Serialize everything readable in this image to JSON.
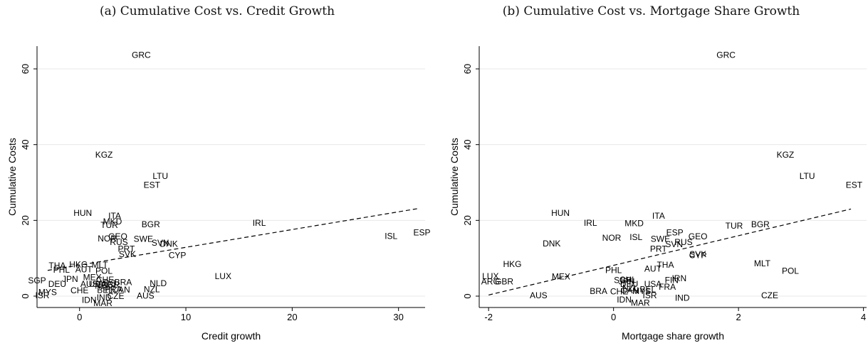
{
  "panels": {
    "a": {
      "title": "(a) Cumulative Cost vs. Credit Growth"
    },
    "b": {
      "title": "(b) Cumulative Cost vs. Mortgage Share Growth"
    }
  },
  "chart_data": [
    {
      "type": "scatter",
      "title": "(a) Cumulative Cost vs. Credit Growth",
      "xlabel": "Credit growth",
      "ylabel": "Cumulative Costs",
      "xlim": [
        -4,
        32.5
      ],
      "ylim": [
        -3,
        66
      ],
      "xticks": [
        0,
        10,
        20,
        30
      ],
      "yticks": [
        0,
        20,
        40,
        60
      ],
      "grid": true,
      "fit_line": [
        [
          -3,
          6.8
        ],
        [
          32,
          23.2
        ]
      ],
      "points": [
        {
          "label": "GRC",
          "x": 5.8,
          "y": 63.5
        },
        {
          "label": "KGZ",
          "x": 2.3,
          "y": 37.2
        },
        {
          "label": "LTU",
          "x": 7.6,
          "y": 31.5
        },
        {
          "label": "EST",
          "x": 6.8,
          "y": 29.2
        },
        {
          "label": "HUN",
          "x": 0.3,
          "y": 21.8
        },
        {
          "label": "ITA",
          "x": 3.3,
          "y": 21.0
        },
        {
          "label": "MKD",
          "x": 3.1,
          "y": 19.5
        },
        {
          "label": "TUR",
          "x": 2.8,
          "y": 18.6
        },
        {
          "label": "BGR",
          "x": 6.7,
          "y": 18.8
        },
        {
          "label": "IRL",
          "x": 16.9,
          "y": 19.2
        },
        {
          "label": "GEO",
          "x": 3.6,
          "y": 15.6
        },
        {
          "label": "NOR",
          "x": 2.6,
          "y": 15.0
        },
        {
          "label": "SWE",
          "x": 6.0,
          "y": 14.9
        },
        {
          "label": "RUS",
          "x": 3.7,
          "y": 14.1
        },
        {
          "label": "SVN",
          "x": 7.6,
          "y": 13.9
        },
        {
          "label": "DNK",
          "x": 8.4,
          "y": 13.6
        },
        {
          "label": "PRT",
          "x": 4.4,
          "y": 12.3
        },
        {
          "label": "SVK",
          "x": 4.5,
          "y": 10.9
        },
        {
          "label": "CYP",
          "x": 9.2,
          "y": 10.6
        },
        {
          "label": "ISL",
          "x": 29.3,
          "y": 15.7
        },
        {
          "label": "ESP",
          "x": 32.2,
          "y": 16.6
        },
        {
          "label": "THA",
          "x": -2.1,
          "y": 7.9
        },
        {
          "label": "HKG",
          "x": -0.1,
          "y": 8.2
        },
        {
          "label": "MLT",
          "x": 1.9,
          "y": 8.1
        },
        {
          "label": "PHL",
          "x": -1.7,
          "y": 6.8
        },
        {
          "label": "AUT",
          "x": 0.4,
          "y": 6.9
        },
        {
          "label": "POL",
          "x": 2.3,
          "y": 6.5
        },
        {
          "label": "SGP",
          "x": -4.0,
          "y": 4.0
        },
        {
          "label": "JPN",
          "x": -0.9,
          "y": 4.3
        },
        {
          "label": "MEX",
          "x": 1.2,
          "y": 4.8
        },
        {
          "label": "CHE",
          "x": 2.4,
          "y": 4.2
        },
        {
          "label": "DEU",
          "x": -2.1,
          "y": 3.0
        },
        {
          "label": "AUS",
          "x": 0.9,
          "y": 3.0
        },
        {
          "label": "USA",
          "x": 1.7,
          "y": 3.0
        },
        {
          "label": "ARG",
          "x": 2.6,
          "y": 3.2
        },
        {
          "label": "BRA",
          "x": 4.1,
          "y": 3.5
        },
        {
          "label": "NZL",
          "x": 2.2,
          "y": 2.6
        },
        {
          "label": "GBR",
          "x": 2.9,
          "y": 2.8
        },
        {
          "label": "LUX",
          "x": 13.5,
          "y": 5.1
        },
        {
          "label": "NLD",
          "x": 7.4,
          "y": 3.2
        },
        {
          "label": "MYS",
          "x": -3.0,
          "y": 0.9
        },
        {
          "label": "CHE",
          "x": 0.0,
          "y": 1.3
        },
        {
          "label": "BEL",
          "x": 2.4,
          "y": 1.4
        },
        {
          "label": "FRA",
          "x": 3.2,
          "y": 1.6
        },
        {
          "label": "CAN",
          "x": 3.9,
          "y": 1.5
        },
        {
          "label": "NZL",
          "x": 6.8,
          "y": 1.6
        },
        {
          "label": "ISR",
          "x": -3.5,
          "y": 0.0
        },
        {
          "label": "IND",
          "x": 2.3,
          "y": -0.5
        },
        {
          "label": "CZE",
          "x": 3.4,
          "y": -0.2
        },
        {
          "label": "AUS",
          "x": 6.2,
          "y": -0.1
        },
        {
          "label": "IDN",
          "x": 0.9,
          "y": -1.2
        },
        {
          "label": "MAR",
          "x": 2.2,
          "y": -2.0
        }
      ]
    },
    {
      "type": "scatter",
      "title": "(b) Cumulative Cost vs. Mortgage Share Growth",
      "xlabel": "Mortgage share growth",
      "ylabel": "Cumulative Costs",
      "xlim": [
        -2.15,
        4.05
      ],
      "ylim": [
        -3,
        66
      ],
      "xticks": [
        -2,
        0,
        2,
        4
      ],
      "yticks": [
        0,
        20,
        40,
        60
      ],
      "grid": true,
      "fit_line": [
        [
          -2.0,
          0.3
        ],
        [
          3.8,
          23.0
        ]
      ],
      "points": [
        {
          "label": "GRC",
          "x": 1.8,
          "y": 63.5
        },
        {
          "label": "KGZ",
          "x": 2.75,
          "y": 37.2
        },
        {
          "label": "LTU",
          "x": 3.1,
          "y": 31.5
        },
        {
          "label": "EST",
          "x": 3.85,
          "y": 29.2
        },
        {
          "label": "HUN",
          "x": -0.85,
          "y": 21.8
        },
        {
          "label": "ITA",
          "x": 0.72,
          "y": 21.0
        },
        {
          "label": "IRL",
          "x": -0.37,
          "y": 19.2
        },
        {
          "label": "MKD",
          "x": 0.33,
          "y": 19.1
        },
        {
          "label": "TUR",
          "x": 1.93,
          "y": 18.4
        },
        {
          "label": "BGR",
          "x": 2.35,
          "y": 18.8
        },
        {
          "label": "ESP",
          "x": 0.98,
          "y": 16.6
        },
        {
          "label": "GEO",
          "x": 1.35,
          "y": 15.6
        },
        {
          "label": "NOR",
          "x": -0.03,
          "y": 15.2
        },
        {
          "label": "ISL",
          "x": 0.36,
          "y": 15.4
        },
        {
          "label": "SWE",
          "x": 0.75,
          "y": 14.9
        },
        {
          "label": "RUS",
          "x": 1.12,
          "y": 14.1
        },
        {
          "label": "DNK",
          "x": -0.99,
          "y": 13.7
        },
        {
          "label": "SVN",
          "x": 0.97,
          "y": 13.5
        },
        {
          "label": "PRT",
          "x": 0.72,
          "y": 12.3
        },
        {
          "label": "SVK",
          "x": 1.35,
          "y": 10.9
        },
        {
          "label": "CYP",
          "x": 1.35,
          "y": 10.6
        },
        {
          "label": "HKG",
          "x": -1.62,
          "y": 8.3
        },
        {
          "label": "THA",
          "x": 0.83,
          "y": 8.1
        },
        {
          "label": "MLT",
          "x": 2.38,
          "y": 8.5
        },
        {
          "label": "AUT",
          "x": 0.63,
          "y": 7.1
        },
        {
          "label": "POL",
          "x": 2.83,
          "y": 6.5
        },
        {
          "label": "PHL",
          "x": 0.0,
          "y": 6.7
        },
        {
          "label": "MEX",
          "x": -0.84,
          "y": 5.0
        },
        {
          "label": "LUX",
          "x": -1.97,
          "y": 5.1
        },
        {
          "label": "ARG",
          "x": -1.97,
          "y": 3.7
        },
        {
          "label": "GBR",
          "x": -1.75,
          "y": 3.7
        },
        {
          "label": "SGP",
          "x": 0.15,
          "y": 4.1
        },
        {
          "label": "CHL",
          "x": 0.23,
          "y": 4.2
        },
        {
          "label": "JPN",
          "x": 0.21,
          "y": 3.7
        },
        {
          "label": "DEU",
          "x": 0.25,
          "y": 3.0
        },
        {
          "label": "USA",
          "x": 0.63,
          "y": 3.0
        },
        {
          "label": "FIN",
          "x": 0.93,
          "y": 4.1
        },
        {
          "label": "IRN",
          "x": 1.05,
          "y": 4.5
        },
        {
          "label": "FRA",
          "x": 0.86,
          "y": 2.3
        },
        {
          "label": "NZL",
          "x": 0.27,
          "y": 2.0
        },
        {
          "label": "BRA",
          "x": -0.24,
          "y": 1.2
        },
        {
          "label": "CHE",
          "x": 0.09,
          "y": 1.1
        },
        {
          "label": "CAN",
          "x": 0.26,
          "y": 1.3
        },
        {
          "label": "MYS",
          "x": 0.45,
          "y": 1.2
        },
        {
          "label": "BEL",
          "x": 0.55,
          "y": 1.6
        },
        {
          "label": "ISR",
          "x": 0.58,
          "y": 0.0
        },
        {
          "label": "AUS",
          "x": -1.2,
          "y": 0.0
        },
        {
          "label": "IND",
          "x": 1.1,
          "y": -0.6
        },
        {
          "label": "CZE",
          "x": 2.5,
          "y": 0.0
        },
        {
          "label": "IDN",
          "x": 0.17,
          "y": -1.1
        },
        {
          "label": "MAR",
          "x": 0.43,
          "y": -1.9
        }
      ]
    }
  ]
}
